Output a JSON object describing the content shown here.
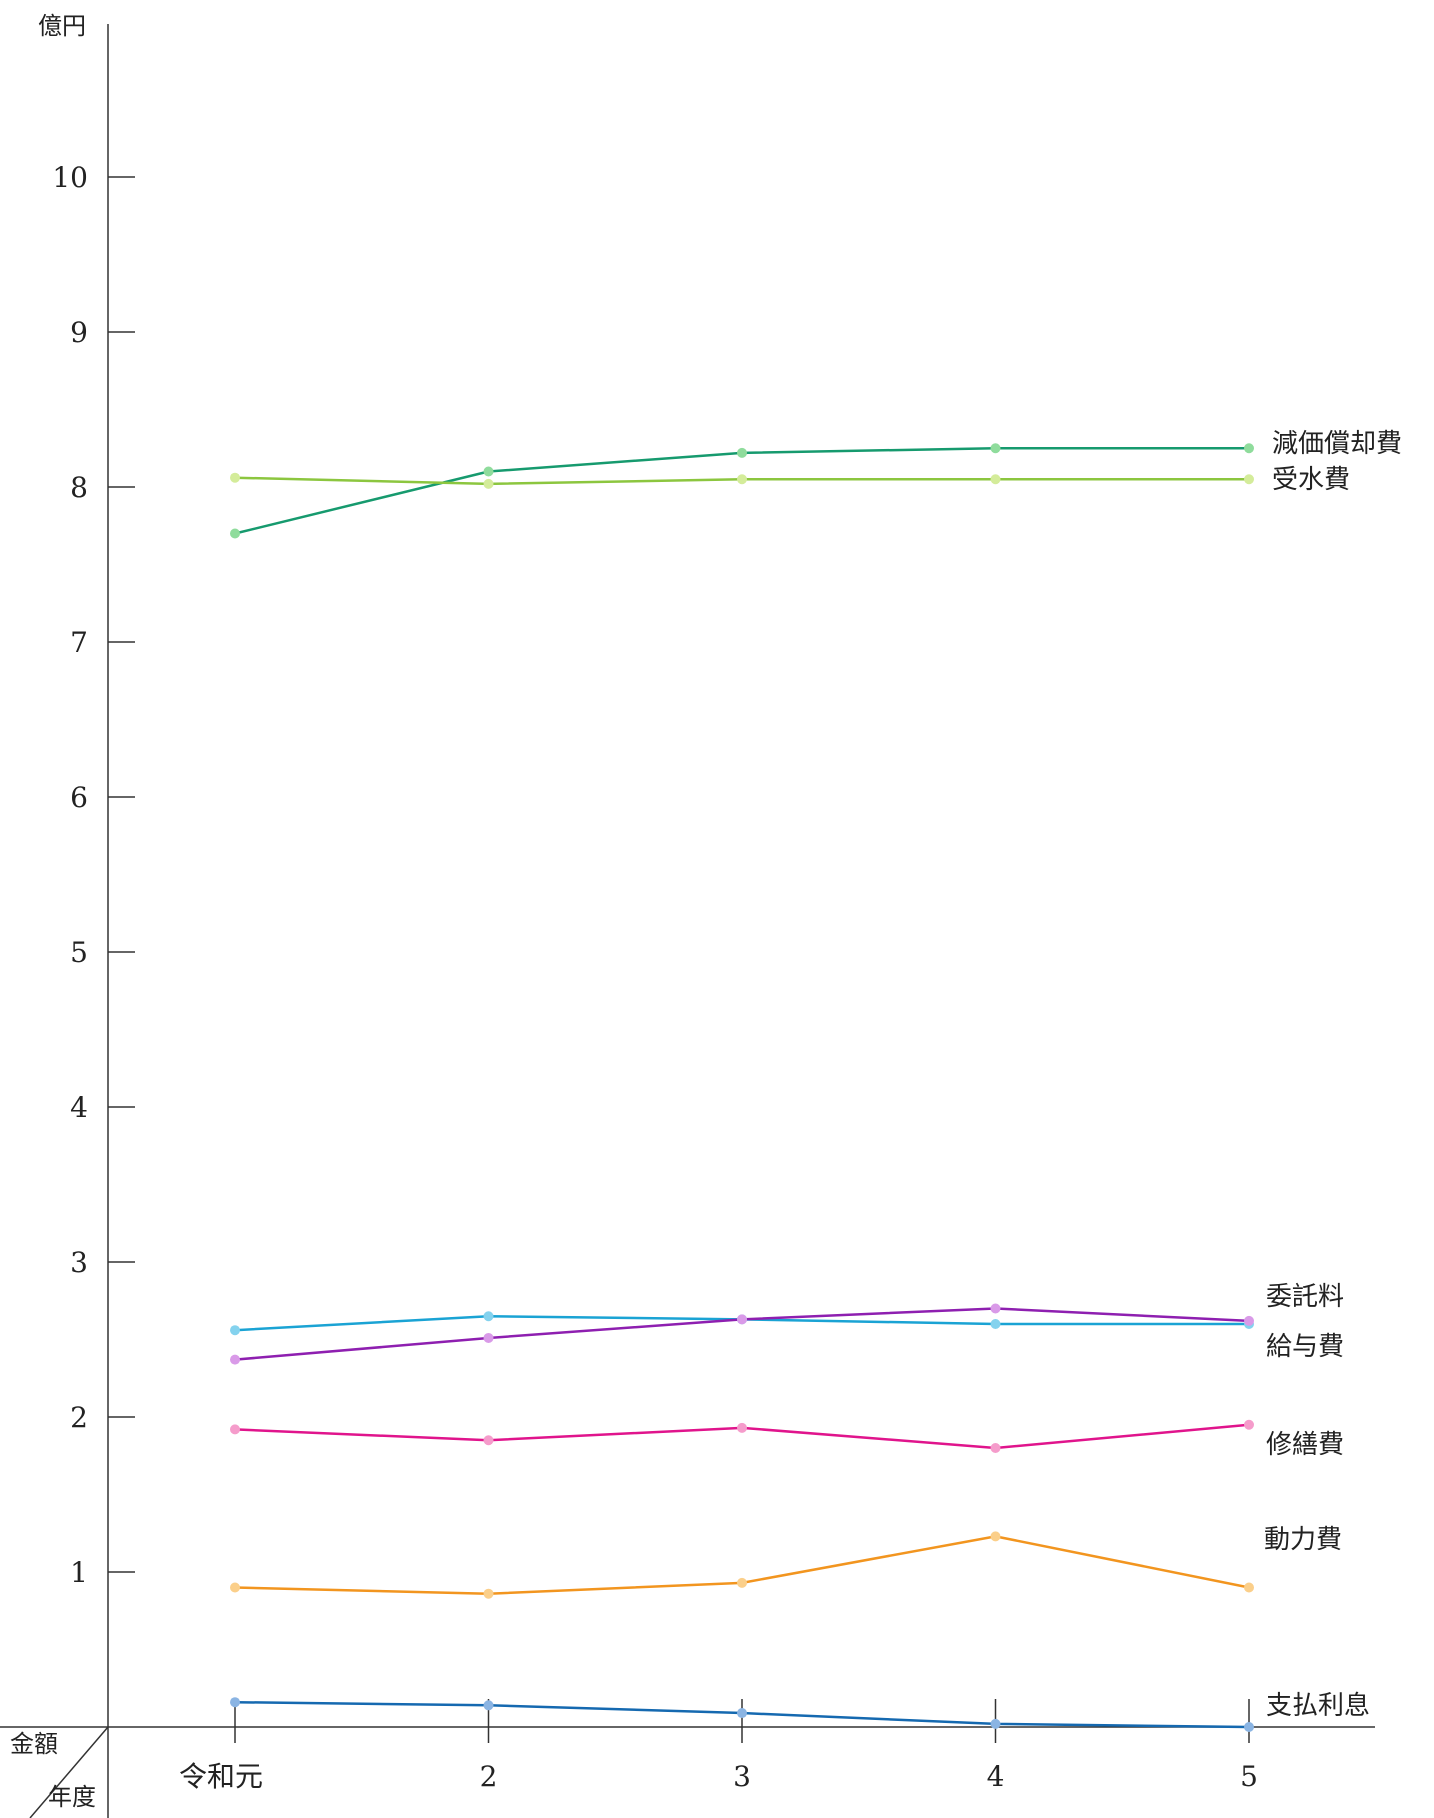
{
  "chart_data": {
    "type": "line",
    "y_unit": "億円",
    "corner_top": "金額",
    "corner_bottom": "年度",
    "categories": [
      "令和元",
      "2",
      "3",
      "4",
      "5"
    ],
    "y_ticks": [
      "1",
      "2",
      "3",
      "4",
      "5",
      "6",
      "7",
      "8",
      "9",
      "10"
    ],
    "ylim": [
      0,
      11
    ],
    "grid": false,
    "legend": "inline-right",
    "series": [
      {
        "name": "減価償却費",
        "color": "#169a6e",
        "marker_color": "#8fdc9c",
        "values": [
          7.7,
          8.1,
          8.22,
          8.25,
          8.25
        ]
      },
      {
        "name": "受水費",
        "color": "#8cc63f",
        "marker_color": "#d4ec9a",
        "values": [
          8.06,
          8.02,
          8.05,
          8.05,
          8.05
        ]
      },
      {
        "name": "委託料",
        "color": "#1aa3d4",
        "marker_color": "#84d2ee",
        "values": [
          2.56,
          2.65,
          2.63,
          2.6,
          2.6
        ]
      },
      {
        "name": "給与費",
        "color": "#8e1fb0",
        "marker_color": "#d99ae8",
        "values": [
          2.37,
          2.51,
          2.63,
          2.7,
          2.62
        ]
      },
      {
        "name": "修繕費",
        "color": "#e0148c",
        "marker_color": "#f59ccb",
        "values": [
          1.92,
          1.85,
          1.93,
          1.8,
          1.95
        ]
      },
      {
        "name": "動力費",
        "color": "#f2951f",
        "marker_color": "#fbcf8a",
        "values": [
          0.9,
          0.86,
          0.93,
          1.23,
          0.9
        ]
      },
      {
        "name": "支払利息",
        "color": "#1569b0",
        "marker_color": "#8ab4e3",
        "values": [
          0.16,
          0.14,
          0.09,
          0.02,
          0.0
        ]
      }
    ]
  }
}
